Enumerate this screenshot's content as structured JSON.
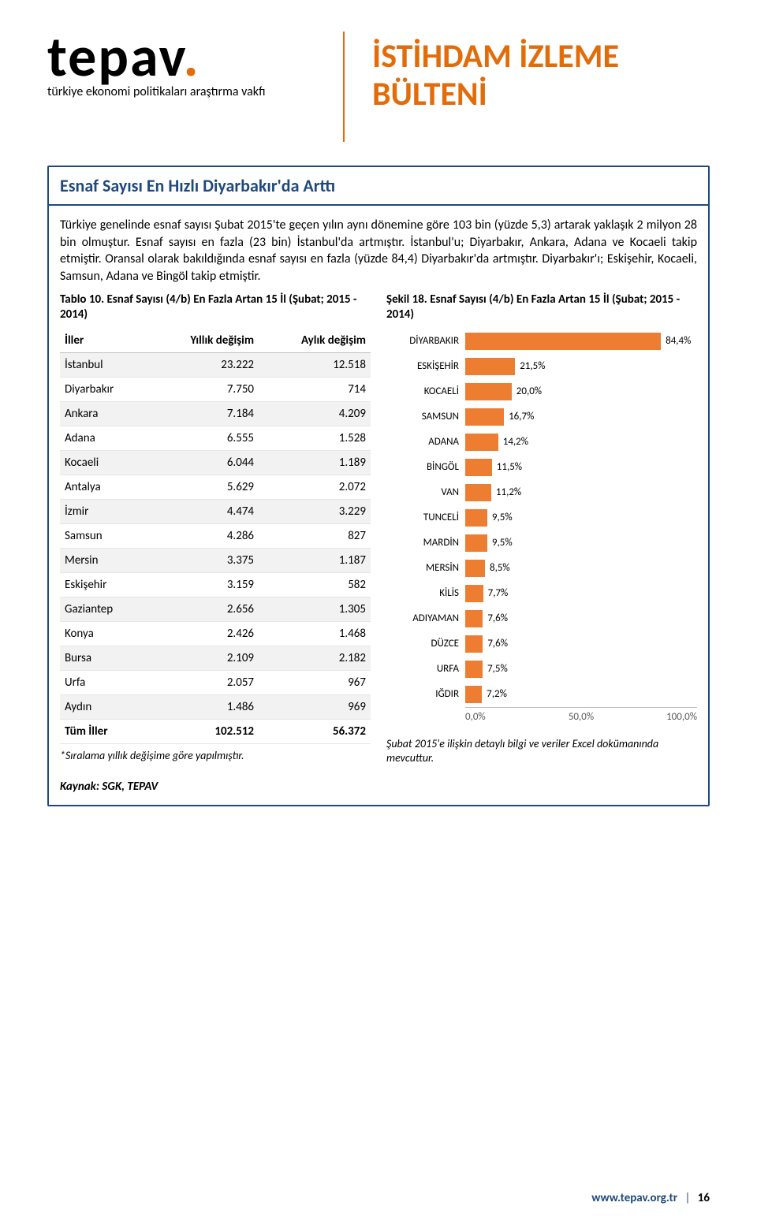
{
  "header": {
    "logo_main": "tepav",
    "logo_sub": "türkiye ekonomi politikaları araştırma vakfı",
    "title_line1": "İSTİHDAM İZLEME",
    "title_line2": "BÜLTENİ",
    "title_color": "#e36c0a",
    "divider_color": "#e36c0a"
  },
  "section": {
    "title": "Esnaf Sayısı En Hızlı Diyarbakır'da Arttı",
    "title_color": "#1f497d",
    "border_color": "#1f497d",
    "body": "Türkiye genelinde esnaf sayısı Şubat 2015'te geçen yılın aynı dönemine göre 103 bin (yüzde 5,3) artarak yaklaşık 2 milyon 28 bin olmuştur. Esnaf sayısı en fazla (23 bin) İstanbul'da artmıştır. İstanbul'u; Diyarbakır, Ankara, Adana ve Kocaeli takip etmiştir. Oransal olarak bakıldığında esnaf sayısı en fazla (yüzde 84,4) Diyarbakır'da artmıştır. Diyarbakır'ı; Eskişehir, Kocaeli, Samsun, Adana ve Bingöl takip etmiştir."
  },
  "table": {
    "caption": "Tablo 10. Esnaf Sayısı (4/b) En Fazla Artan 15 İl (Şubat; 2015 - 2014)",
    "columns": [
      "İller",
      "Yıllık değişim",
      "Aylık değişim"
    ],
    "rows": [
      [
        "İstanbul",
        "23.222",
        "12.518"
      ],
      [
        "Diyarbakır",
        "7.750",
        "714"
      ],
      [
        "Ankara",
        "7.184",
        "4.209"
      ],
      [
        "Adana",
        "6.555",
        "1.528"
      ],
      [
        "Kocaeli",
        "6.044",
        "1.189"
      ],
      [
        "Antalya",
        "5.629",
        "2.072"
      ],
      [
        "İzmir",
        "4.474",
        "3.229"
      ],
      [
        "Samsun",
        "4.286",
        "827"
      ],
      [
        "Mersin",
        "3.375",
        "1.187"
      ],
      [
        "Eskişehir",
        "3.159",
        "582"
      ],
      [
        "Gaziantep",
        "2.656",
        "1.305"
      ],
      [
        "Konya",
        "2.426",
        "1.468"
      ],
      [
        "Bursa",
        "2.109",
        "2.182"
      ],
      [
        "Urfa",
        "2.057",
        "967"
      ],
      [
        "Aydın",
        "1.486",
        "969"
      ]
    ],
    "total_row": [
      "Tüm İller",
      "102.512",
      "56.372"
    ],
    "footnote": "*Sıralama yıllık değişime göre yapılmıştır.",
    "source": "Kaynak: SGK, TEPAV",
    "alt_row_bg": "#f2f2f2"
  },
  "chart": {
    "caption": "Şekil 18. Esnaf Sayısı (4/b) En Fazla Artan 15 İl (Şubat; 2015 - 2014)",
    "type": "bar",
    "orientation": "horizontal",
    "bar_color": "#ed7d31",
    "background_color": "#ffffff",
    "label_fontsize": 13,
    "xlim": [
      0,
      100
    ],
    "xtick_labels": [
      "0,0%",
      "50,0%",
      "100,0%"
    ],
    "items": [
      {
        "label": "DİYARBAKIR",
        "value": 84.4,
        "display": "84,4%"
      },
      {
        "label": "ESKİŞEHİR",
        "value": 21.5,
        "display": "21,5%"
      },
      {
        "label": "KOCAELİ",
        "value": 20.0,
        "display": "20,0%"
      },
      {
        "label": "SAMSUN",
        "value": 16.7,
        "display": "16,7%"
      },
      {
        "label": "ADANA",
        "value": 14.2,
        "display": "14,2%"
      },
      {
        "label": "BİNGÖL",
        "value": 11.5,
        "display": "11,5%"
      },
      {
        "label": "VAN",
        "value": 11.2,
        "display": "11,2%"
      },
      {
        "label": "TUNCELİ",
        "value": 9.5,
        "display": "9,5%"
      },
      {
        "label": "MARDİN",
        "value": 9.5,
        "display": "9,5%"
      },
      {
        "label": "MERSİN",
        "value": 8.5,
        "display": "8,5%"
      },
      {
        "label": "KİLİS",
        "value": 7.7,
        "display": "7,7%"
      },
      {
        "label": "ADIYAMAN",
        "value": 7.6,
        "display": "7,6%"
      },
      {
        "label": "DÜZCE",
        "value": 7.6,
        "display": "7,6%"
      },
      {
        "label": "URFA",
        "value": 7.5,
        "display": "7,5%"
      },
      {
        "label": "IĞDIR",
        "value": 7.2,
        "display": "7,2%"
      }
    ],
    "note": "Şubat 2015'e ilişkin detaylı bilgi ve veriler Excel dokümanında mevcuttur."
  },
  "footer": {
    "url": "www.tepav.org.tr",
    "separator": "|",
    "page_no": "16",
    "url_color": "#1f497d"
  }
}
